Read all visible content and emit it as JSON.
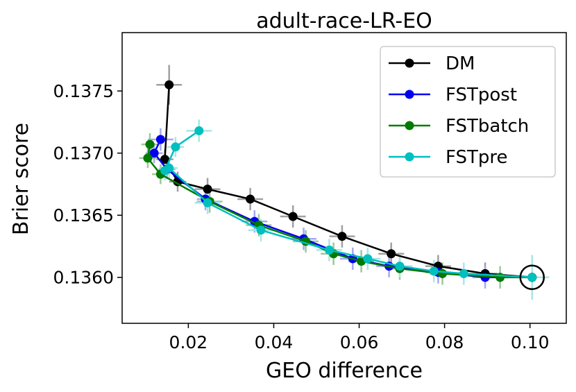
{
  "chart_data": {
    "type": "line",
    "title": "adult-race-LR-EO",
    "xlabel": "GEO difference",
    "ylabel": "Brier score",
    "xlim": [
      0.0045,
      0.1085
    ],
    "ylim": [
      0.13563,
      0.13797
    ],
    "xticks": [
      0.02,
      0.04,
      0.06,
      0.08,
      0.1
    ],
    "xtick_labels": [
      "0.02",
      "0.04",
      "0.06",
      "0.08",
      "0.10"
    ],
    "yticks": [
      0.136,
      0.1365,
      0.137,
      0.1375
    ],
    "ytick_labels": [
      "0.1360",
      "0.1365",
      "0.1370",
      "0.1375"
    ],
    "grid": false,
    "legend_position": "top-right",
    "error_bars": true,
    "highlight_marker": {
      "x": 0.1005,
      "y": 0.136
    },
    "series": [
      {
        "name": "DM",
        "color": "#000000",
        "err_color": "#a0a0a0",
        "x": [
          0.0155,
          0.0145,
          0.0175,
          0.0245,
          0.0345,
          0.0445,
          0.056,
          0.0675,
          0.0785,
          0.0895,
          0.1005
        ],
        "y": [
          0.13755,
          0.13695,
          0.13677,
          0.13671,
          0.13663,
          0.13649,
          0.13633,
          0.13619,
          0.13609,
          0.13603,
          0.136
        ],
        "xerr": [
          0.003,
          0.002,
          0.002,
          0.003,
          0.003,
          0.003,
          0.003,
          0.003,
          0.003,
          0.003,
          0.0
        ],
        "yerr": [
          0.00016,
          8e-05,
          8e-05,
          9e-05,
          9e-05,
          9e-05,
          9e-05,
          9e-05,
          9e-05,
          9e-05,
          0.0
        ]
      },
      {
        "name": "FSTpost",
        "color": "#0000ee",
        "err_color": "#a8a8f4",
        "x": [
          0.0135,
          0.012,
          0.015,
          0.024,
          0.0355,
          0.047,
          0.0585,
          0.067,
          0.0785,
          0.0895,
          0.1005
        ],
        "y": [
          0.13711,
          0.137,
          0.13687,
          0.13663,
          0.13645,
          0.13631,
          0.13615,
          0.13609,
          0.13604,
          0.136,
          0.136
        ],
        "xerr": [
          0.003,
          0.002,
          0.002,
          0.002,
          0.003,
          0.003,
          0.003,
          0.003,
          0.003,
          0.003,
          0.0
        ],
        "yerr": [
          9e-05,
          8e-05,
          8e-05,
          9e-05,
          9e-05,
          9e-05,
          9e-05,
          9e-05,
          9e-05,
          9e-05,
          0.0
        ]
      },
      {
        "name": "FSTbatch",
        "color": "#007a00",
        "err_color": "#9cc89c",
        "x": [
          0.011,
          0.0105,
          0.0135,
          0.025,
          0.0365,
          0.0475,
          0.054,
          0.0605,
          0.0695,
          0.0795,
          0.093,
          0.1005
        ],
        "y": [
          0.13707,
          0.13696,
          0.13683,
          0.13661,
          0.13642,
          0.13629,
          0.13619,
          0.13613,
          0.13607,
          0.13603,
          0.136,
          0.136
        ],
        "xerr": [
          0.002,
          0.002,
          0.002,
          0.003,
          0.003,
          0.003,
          0.003,
          0.003,
          0.003,
          0.003,
          0.003,
          0.0
        ],
        "yerr": [
          9e-05,
          8e-05,
          8e-05,
          9e-05,
          9e-05,
          9e-05,
          9e-05,
          9e-05,
          9e-05,
          9e-05,
          9e-05,
          0.0
        ]
      },
      {
        "name": "FSTpre",
        "color": "#00bfbf",
        "err_color": "#a8e6e6",
        "x": [
          0.0225,
          0.017,
          0.0145,
          0.0155,
          0.0245,
          0.037,
          0.053,
          0.062,
          0.0695,
          0.0775,
          0.0845,
          0.1005
        ],
        "y": [
          0.13718,
          0.13705,
          0.13686,
          0.13688,
          0.1366,
          0.13638,
          0.13622,
          0.13615,
          0.13609,
          0.13605,
          0.13603,
          0.136
        ],
        "xerr": [
          0.003,
          0.002,
          0.002,
          0.002,
          0.003,
          0.003,
          0.003,
          0.003,
          0.003,
          0.003,
          0.003,
          0.004
        ],
        "yerr": [
          9e-05,
          8e-05,
          8e-05,
          8e-05,
          9e-05,
          9e-05,
          9e-05,
          9e-05,
          9e-05,
          9e-05,
          9e-05,
          0.00018
        ]
      }
    ]
  }
}
